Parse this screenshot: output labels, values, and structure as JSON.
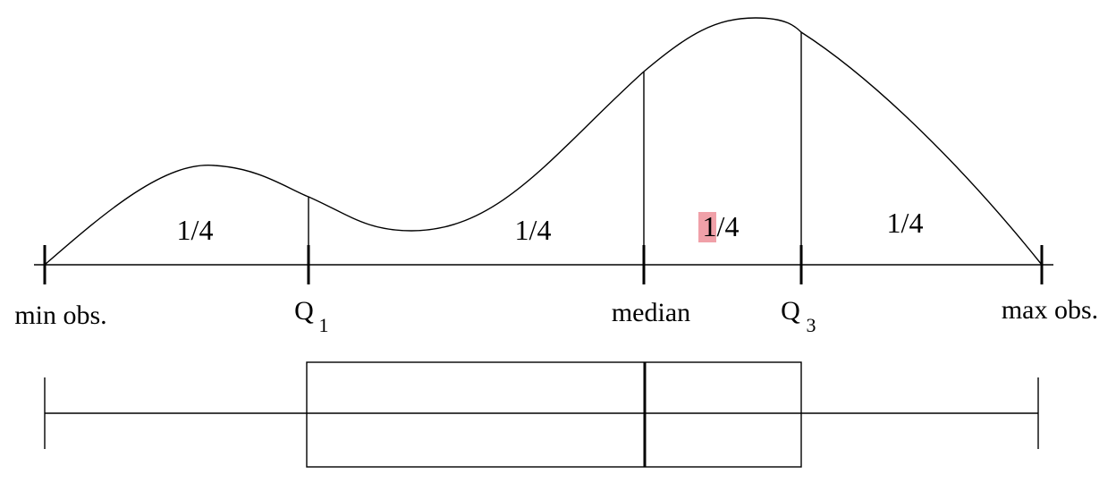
{
  "quartile_fractions": [
    "1/4",
    "1/4",
    "1/4",
    "1/4"
  ],
  "axis_labels": {
    "min": "min obs.",
    "q1_main": "Q",
    "q1_sub": "1",
    "median": "median",
    "q3_main": "Q",
    "q3_sub": "3",
    "max": "max obs."
  },
  "colors": {
    "line": "#000000",
    "highlight": "#f0a0a8"
  }
}
